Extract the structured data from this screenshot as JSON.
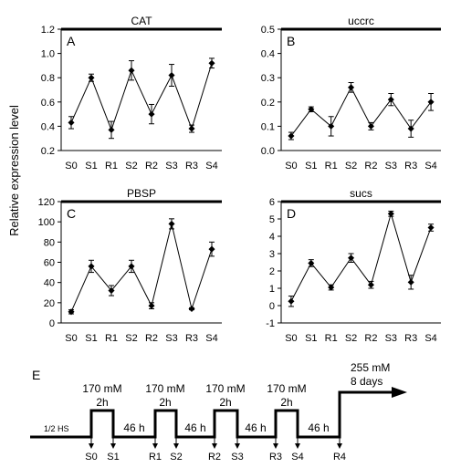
{
  "figure": {
    "ylabel": "Relative expression level",
    "panel_e": {
      "letter": "E",
      "baseline_label": "1/2 HS",
      "top_labels": [
        {
          "conc": "170 mM",
          "dur": "2h"
        },
        {
          "conc": "170 mM",
          "dur": "2h"
        },
        {
          "conc": "170 mM",
          "dur": "2h"
        },
        {
          "conc": "170 mM",
          "dur": "2h"
        }
      ],
      "final_conc": "255 mM",
      "final_dur": "8 days",
      "gap_labels": [
        "46 h",
        "46 h",
        "46 h",
        "46 h"
      ],
      "sample_labels": [
        "S0",
        "S1",
        "R1",
        "S2",
        "R2",
        "S3",
        "R3",
        "S4",
        "R4"
      ]
    }
  },
  "chart_data": [
    {
      "type": "line",
      "letter": "A",
      "title": "CAT",
      "categories": [
        "S0",
        "S1",
        "R1",
        "S2",
        "R2",
        "S3",
        "R3",
        "S4"
      ],
      "values": [
        0.43,
        0.8,
        0.37,
        0.86,
        0.5,
        0.82,
        0.38,
        0.92
      ],
      "errors": [
        0.05,
        0.03,
        0.07,
        0.08,
        0.08,
        0.09,
        0.03,
        0.04
      ],
      "ylim": [
        0.2,
        1.2
      ],
      "yticks": [
        "0.2",
        "0.4",
        "0.6",
        "0.8",
        "1.0",
        "1.2"
      ]
    },
    {
      "type": "line",
      "letter": "B",
      "title": "uccrc",
      "categories": [
        "S0",
        "S1",
        "R1",
        "S2",
        "R2",
        "S3",
        "R3",
        "S4"
      ],
      "values": [
        0.06,
        0.17,
        0.1,
        0.26,
        0.1,
        0.21,
        0.09,
        0.2
      ],
      "errors": [
        0.015,
        0.01,
        0.04,
        0.02,
        0.015,
        0.025,
        0.035,
        0.035
      ],
      "ylim": [
        0.0,
        0.5
      ],
      "yticks": [
        "0.0",
        "0.1",
        "0.2",
        "0.3",
        "0.4",
        "0.5"
      ]
    },
    {
      "type": "line",
      "letter": "C",
      "title": "PBSP",
      "categories": [
        "S0",
        "S1",
        "R1",
        "S2",
        "R2",
        "S3",
        "R3",
        "S4"
      ],
      "values": [
        11,
        56,
        32,
        56,
        17,
        98,
        14,
        73
      ],
      "errors": [
        2,
        6,
        5,
        6,
        3,
        5,
        1,
        7
      ],
      "ylim": [
        0,
        120
      ],
      "yticks": [
        "0",
        "20",
        "40",
        "60",
        "80",
        "100",
        "120"
      ]
    },
    {
      "type": "line",
      "letter": "D",
      "title": "sucs",
      "categories": [
        "S0",
        "S1",
        "R1",
        "S2",
        "R2",
        "S3",
        "R3",
        "S4"
      ],
      "values": [
        0.25,
        2.45,
        1.05,
        2.75,
        1.2,
        5.3,
        1.35,
        4.5
      ],
      "errors": [
        0.3,
        0.2,
        0.15,
        0.25,
        0.2,
        0.15,
        0.4,
        0.2
      ],
      "ylim": [
        -1,
        6
      ],
      "yticks": [
        "-1",
        "0",
        "1",
        "2",
        "3",
        "4",
        "5",
        "6"
      ]
    }
  ]
}
